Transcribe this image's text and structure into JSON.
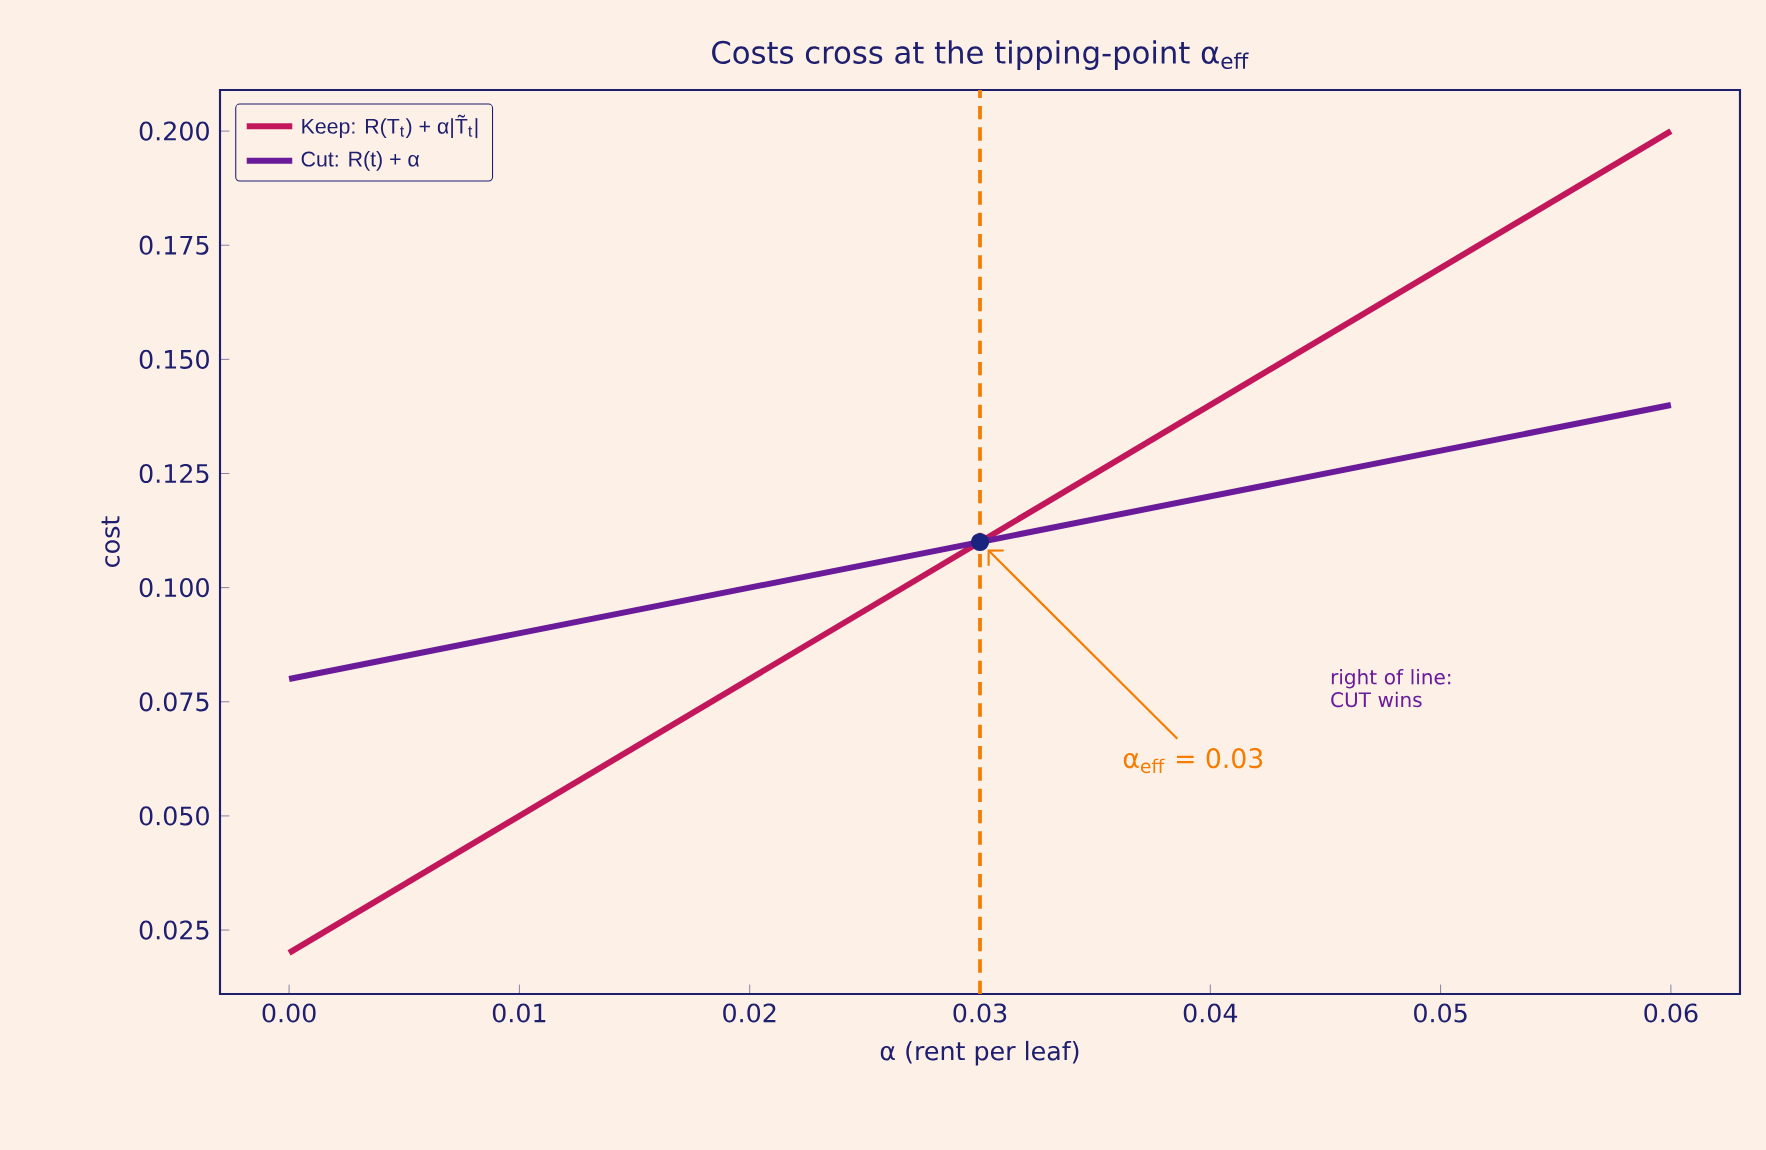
{
  "chart_data": {
    "type": "line",
    "title": "Costs cross at the tipping-point α$_{eff}$",
    "xlabel": "α (rent per leaf)",
    "ylabel": "cost",
    "series": [
      {
        "name": "Keep: R(T$_{t}$) + α|T̃$_{t}$|",
        "color": "#c2185b",
        "x": [
          0,
          0.06
        ],
        "values": [
          0.02,
          0.2
        ]
      },
      {
        "name": "Cut: R(t) + α",
        "color": "#6a1b9a",
        "x": [
          0,
          0.06
        ],
        "values": [
          0.08,
          0.14
        ]
      },
      {
        "type": "scatter",
        "marker": "circle",
        "color": "#1a237e",
        "x": [
          0.03
        ],
        "values": [
          0.11
        ]
      }
    ],
    "xlim": [
      -0.003,
      0.063
    ],
    "ylim": [
      0.011,
      0.209
    ],
    "xticks": [
      {
        "value": 0,
        "label": "0.00"
      },
      {
        "value": 0.01,
        "label": "0.01"
      },
      {
        "value": 0.02,
        "label": "0.02"
      },
      {
        "value": 0.03,
        "label": "0.03"
      },
      {
        "value": 0.04,
        "label": "0.04"
      },
      {
        "value": 0.05,
        "label": "0.05"
      },
      {
        "value": 0.06,
        "label": "0.06"
      }
    ],
    "yticks": [
      {
        "value": 0.025,
        "label": "0.025"
      },
      {
        "value": 0.05,
        "label": "0.050"
      },
      {
        "value": 0.075,
        "label": "0.075"
      },
      {
        "value": 0.1,
        "label": "0.100"
      },
      {
        "value": 0.125,
        "label": "0.125"
      },
      {
        "value": 0.15,
        "label": "0.150"
      },
      {
        "value": 0.175,
        "label": "0.175"
      },
      {
        "value": 0.2,
        "label": "0.200"
      }
    ],
    "ref_lines": [
      {
        "axis": "x",
        "value": 0.03,
        "color": "#f57c00",
        "line_style": "dashed"
      }
    ],
    "annotations": [
      {
        "text": "α$_{eff}$ = 0.03",
        "x": 0.03,
        "y": 0.11
      },
      "right of line: CUT wins"
    ],
    "legend": "top left"
  }
}
